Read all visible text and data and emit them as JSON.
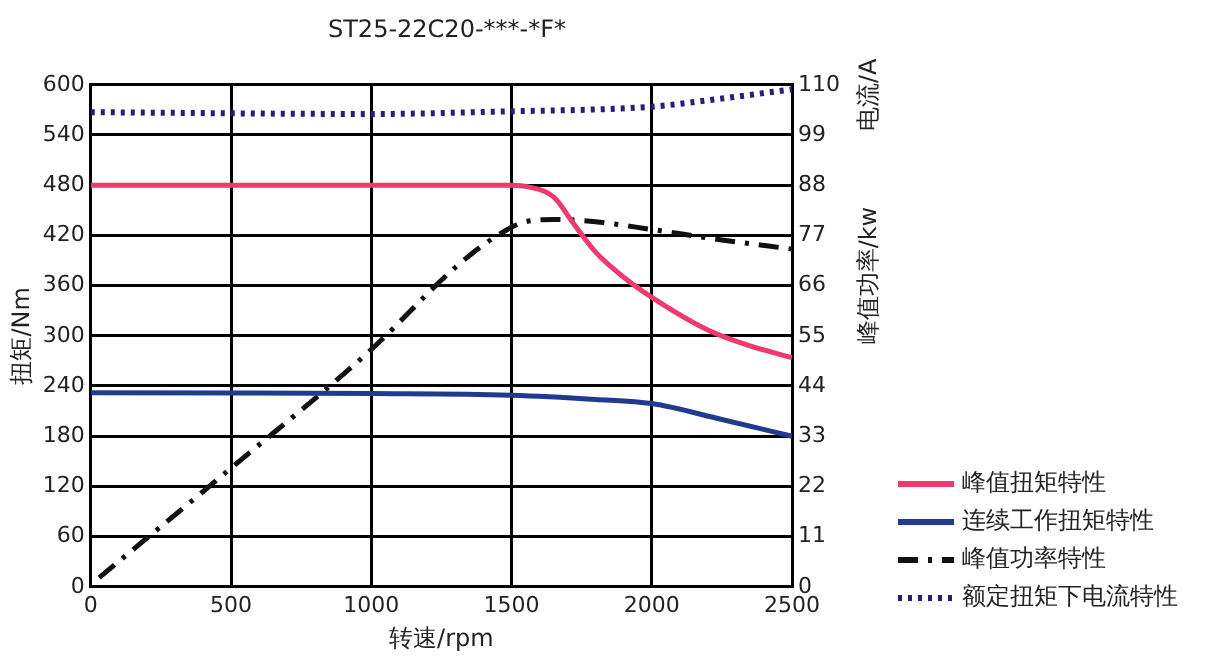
{
  "chart_data": {
    "type": "line",
    "title": "ST25-22C20-***-*F*",
    "xlabel": "转速/rpm",
    "ylabel": "扭矩/Nm",
    "y2label": "峰值功率/kw",
    "y3label": "电流/A",
    "xlim": [
      0,
      2500
    ],
    "xticks": [
      0,
      500,
      1000,
      1500,
      2000,
      2500
    ],
    "ylim": [
      0,
      600
    ],
    "yticks": [
      0,
      60,
      120,
      180,
      240,
      300,
      360,
      420,
      480,
      540,
      600
    ],
    "y2lim": [
      0,
      110
    ],
    "y2ticks": [
      0,
      11,
      22,
      33,
      44,
      55,
      66,
      77,
      88,
      99,
      110
    ],
    "grid": true,
    "legend": "bottom right",
    "marker": "none",
    "tick_labels": "xy",
    "series": [
      {
        "name": "峰值扭矩特性",
        "color": "#ee3a6e",
        "line_style": "solid",
        "x": [
          0,
          1500,
          1560,
          1650,
          1715,
          1800,
          1900,
          2000,
          2200,
          2350,
          2500
        ],
        "values": [
          480,
          480,
          478,
          466,
          437,
          400,
          370,
          346,
          307,
          288,
          274
        ]
      },
      {
        "name": "连续工作扭矩特性",
        "color": "#1f3a8f",
        "line_style": "solid",
        "x": [
          0,
          1000,
          1500,
          1800,
          2000,
          2250,
          2500
        ],
        "values": [
          232,
          231,
          229,
          224,
          219,
          200,
          180
        ]
      },
      {
        "name": "峰值功率特性",
        "color": "#111111",
        "line_style": "dashed",
        "axis": "y2",
        "x": [
          30,
          500,
          1000,
          1300,
          1450,
          1550,
          1650,
          1800,
          2000,
          2250,
          2500
        ],
        "values": [
          2,
          26,
          52,
          70,
          77,
          80,
          80.5,
          80,
          78.3,
          76,
          74
        ]
      },
      {
        "name": "额定扭矩下电流特性",
        "color": "#2e1a7a",
        "line_style": "dotted",
        "axis": "y2",
        "x": [
          0,
          1000,
          1500,
          1800,
          2000,
          2250,
          2500
        ],
        "values": [
          104,
          103.6,
          104.2,
          104.6,
          105.2,
          107,
          109
        ]
      }
    ]
  }
}
